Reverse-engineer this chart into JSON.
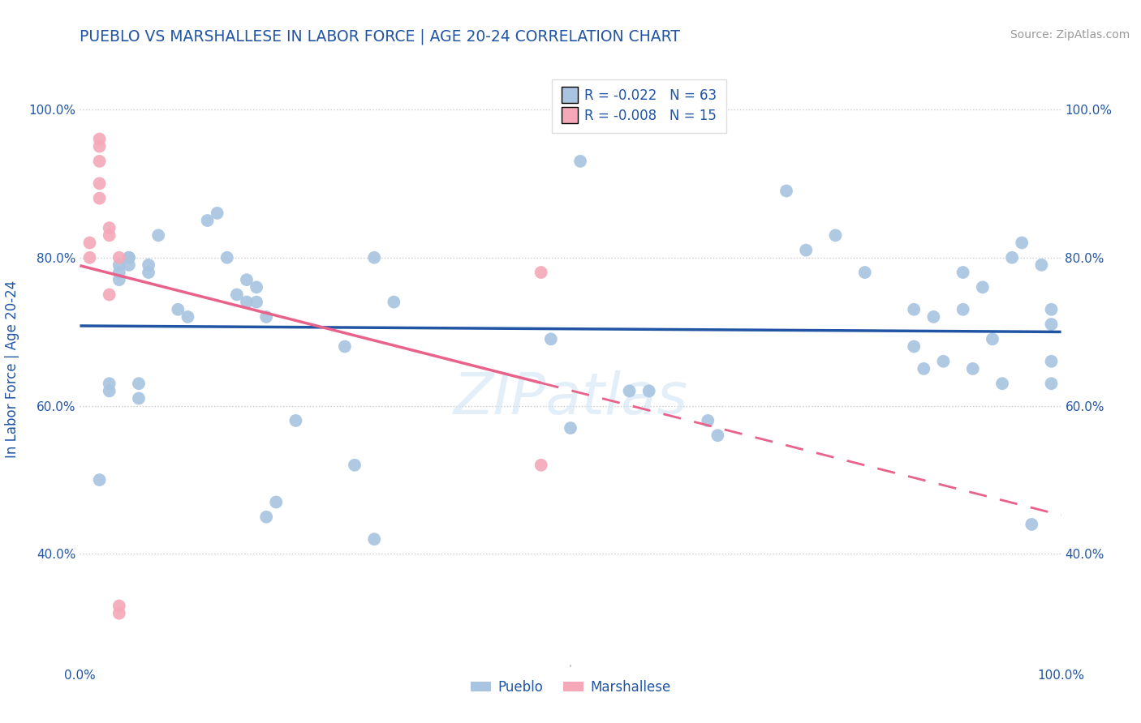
{
  "title": "PUEBLO VS MARSHALLESE IN LABOR FORCE | AGE 20-24 CORRELATION CHART",
  "source": "Source: ZipAtlas.com",
  "xlabel": "",
  "ylabel": "In Labor Force | Age 20-24",
  "xlim": [
    0,
    1
  ],
  "ylim": [
    0.25,
    1.05
  ],
  "y_ticks": [
    0.4,
    0.6,
    0.8,
    1.0
  ],
  "y_tick_labels": [
    "40.0%",
    "60.0%",
    "80.0%",
    "100.0%"
  ],
  "title_color": "#2155a3",
  "axis_label_color": "#2155a3",
  "tick_color": "#2155a3",
  "legend_r_pueblo": "R = -0.022",
  "legend_n_pueblo": "N = 63",
  "legend_r_marsh": "R = -0.008",
  "legend_n_marsh": "N = 15",
  "pueblo_color": "#a8c4e0",
  "marsh_color": "#f4a8b8",
  "pueblo_line_color": "#2155a3",
  "marsh_line_color": "#e8628a",
  "watermark": "ZIPatlas",
  "pueblo_x": [
    0.02,
    0.03,
    0.03,
    0.04,
    0.04,
    0.04,
    0.05,
    0.05,
    0.05,
    0.06,
    0.06,
    0.07,
    0.07,
    0.08,
    0.1,
    0.11,
    0.13,
    0.14,
    0.15,
    0.16,
    0.17,
    0.17,
    0.18,
    0.18,
    0.19,
    0.19,
    0.2,
    0.22,
    0.27,
    0.28,
    0.3,
    0.3,
    0.32,
    0.48,
    0.5,
    0.51,
    0.56,
    0.58,
    0.64,
    0.65,
    0.72,
    0.74,
    0.77,
    0.8,
    0.85,
    0.85,
    0.86,
    0.87,
    0.88,
    0.9,
    0.9,
    0.91,
    0.92,
    0.93,
    0.94,
    0.95,
    0.96,
    0.97,
    0.98,
    0.99,
    0.99,
    0.99,
    0.99
  ],
  "pueblo_y": [
    0.5,
    0.63,
    0.62,
    0.79,
    0.78,
    0.77,
    0.8,
    0.8,
    0.79,
    0.63,
    0.61,
    0.79,
    0.78,
    0.83,
    0.73,
    0.72,
    0.85,
    0.86,
    0.8,
    0.75,
    0.74,
    0.77,
    0.76,
    0.74,
    0.72,
    0.45,
    0.47,
    0.58,
    0.68,
    0.52,
    0.42,
    0.8,
    0.74,
    0.69,
    0.57,
    0.93,
    0.62,
    0.62,
    0.58,
    0.56,
    0.89,
    0.81,
    0.83,
    0.78,
    0.73,
    0.68,
    0.65,
    0.72,
    0.66,
    0.78,
    0.73,
    0.65,
    0.76,
    0.69,
    0.63,
    0.8,
    0.82,
    0.44,
    0.79,
    0.66,
    0.63,
    0.73,
    0.71
  ],
  "marsh_x": [
    0.01,
    0.01,
    0.02,
    0.02,
    0.02,
    0.02,
    0.02,
    0.03,
    0.03,
    0.03,
    0.04,
    0.04,
    0.04,
    0.47,
    0.47
  ],
  "marsh_y": [
    0.82,
    0.8,
    0.96,
    0.95,
    0.93,
    0.9,
    0.88,
    0.84,
    0.83,
    0.75,
    0.8,
    0.33,
    0.32,
    0.52,
    0.78
  ]
}
